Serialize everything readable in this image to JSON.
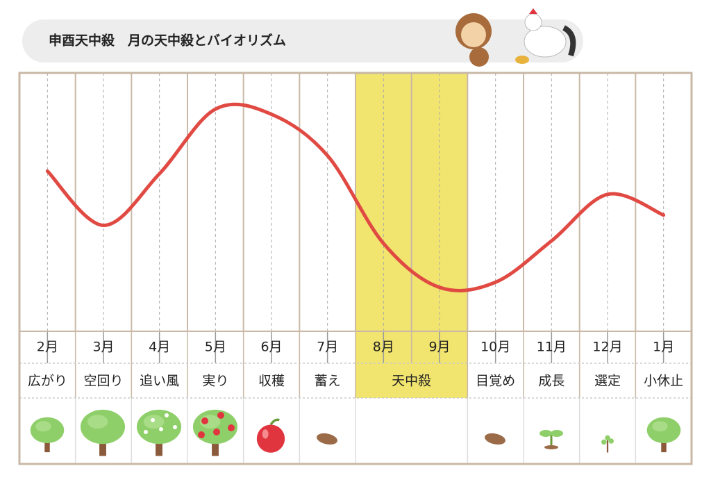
{
  "chart_data": {
    "type": "line",
    "title": "申酉天中殺　月の天中殺とバイオリズム",
    "categories": [
      "2月",
      "3月",
      "4月",
      "5月",
      "6月",
      "7月",
      "8月",
      "9月",
      "10月",
      "11月",
      "12月",
      "1月"
    ],
    "phases": [
      "広がり",
      "空回り",
      "追い風",
      "実り",
      "収穫",
      "蓄え",
      "天中殺",
      null,
      "目覚め",
      "成長",
      "選定",
      "小休止"
    ],
    "values": [
      62,
      41,
      61,
      86,
      84,
      68,
      34,
      17,
      19,
      35,
      53,
      45
    ],
    "ylim": [
      0,
      100
    ],
    "color": "#e04a43",
    "highlight": [
      6,
      7
    ],
    "highlight_color": "#f1e46f"
  }
}
